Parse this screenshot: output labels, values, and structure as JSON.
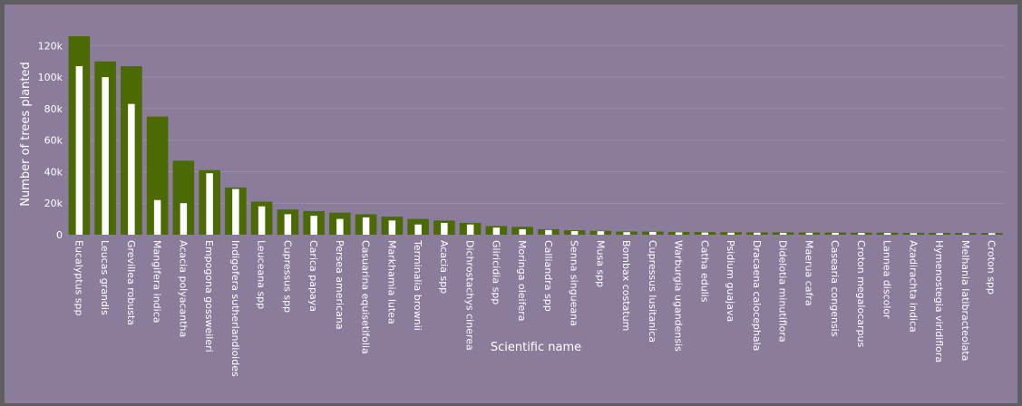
{
  "chart_data": {
    "type": "bar",
    "title": "",
    "xlabel": "Scientific name",
    "ylabel": "Number of trees planted",
    "ylim": [
      0,
      130000
    ],
    "y_ticks": [
      0,
      20000,
      40000,
      60000,
      80000,
      100000,
      120000
    ],
    "y_tick_labels": [
      "0",
      "20k",
      "40k",
      "60k",
      "80k",
      "100k",
      "120k"
    ],
    "grid": true,
    "legend": "none",
    "colors": {
      "background": "#8b7c9b",
      "outer": "#5e5e60",
      "series_planted": "#4b6a04",
      "series_inner": "#ffffff",
      "grid": "#9a8caa"
    },
    "categories": [
      "Eucalyptus spp",
      "Leucas grandis",
      "Grevillea robusta",
      "Mangifera indica",
      "Acacia polyacantha",
      "Empogona gossweileri",
      "Indigofera sutherlandioides",
      "Leuceana spp",
      "Cupressus spp",
      "Carica papaya",
      "Persea americana",
      "Casuarina equisetifolia",
      "Markhamia lutea",
      "Terminalia brownii",
      "Acacia spp",
      "Dichrostachys cinerea",
      "Gliricidia spp",
      "Moringa oleifera",
      "Calliandra spp",
      "Senna singueana",
      "Musa spp",
      "Bombax costatum",
      "Cupressus lusitanica",
      "Warburgia ugandensis",
      "Catha edulis",
      "Psidium guajava",
      "Dracaena calocephala",
      "Didelotia minutiflora",
      "Maerua cafra",
      "Casearia congensis",
      "Croton megalocarpus",
      "Lannea discolor",
      "Azadirachta indica",
      "Hymenostegia viridiflora",
      "Melhania latibracteolata",
      "Croton spp"
    ],
    "series": [
      {
        "values": [
          126000,
          110000,
          107000,
          75000,
          47000,
          41000,
          30000,
          21000,
          16000,
          15000,
          14000,
          13000,
          11500,
          10000,
          9000,
          7500,
          5500,
          5000,
          3500,
          2800,
          2500,
          2000,
          2000,
          1800,
          1700,
          1600,
          1500,
          1500,
          1400,
          1400,
          1300,
          1300,
          1200,
          1200,
          1100,
          1100
        ]
      },
      {
        "values": [
          107000,
          100000,
          83000,
          22000,
          20000,
          39000,
          29000,
          18000,
          13000,
          12000,
          10000,
          11000,
          9000,
          6500,
          7500,
          6500,
          4500,
          3500,
          3000,
          2300,
          2200,
          1600,
          1800,
          1500,
          1400,
          1300,
          1300,
          1200,
          1200,
          1200,
          1100,
          1100,
          1000,
          1000,
          1000,
          1000
        ]
      }
    ]
  }
}
